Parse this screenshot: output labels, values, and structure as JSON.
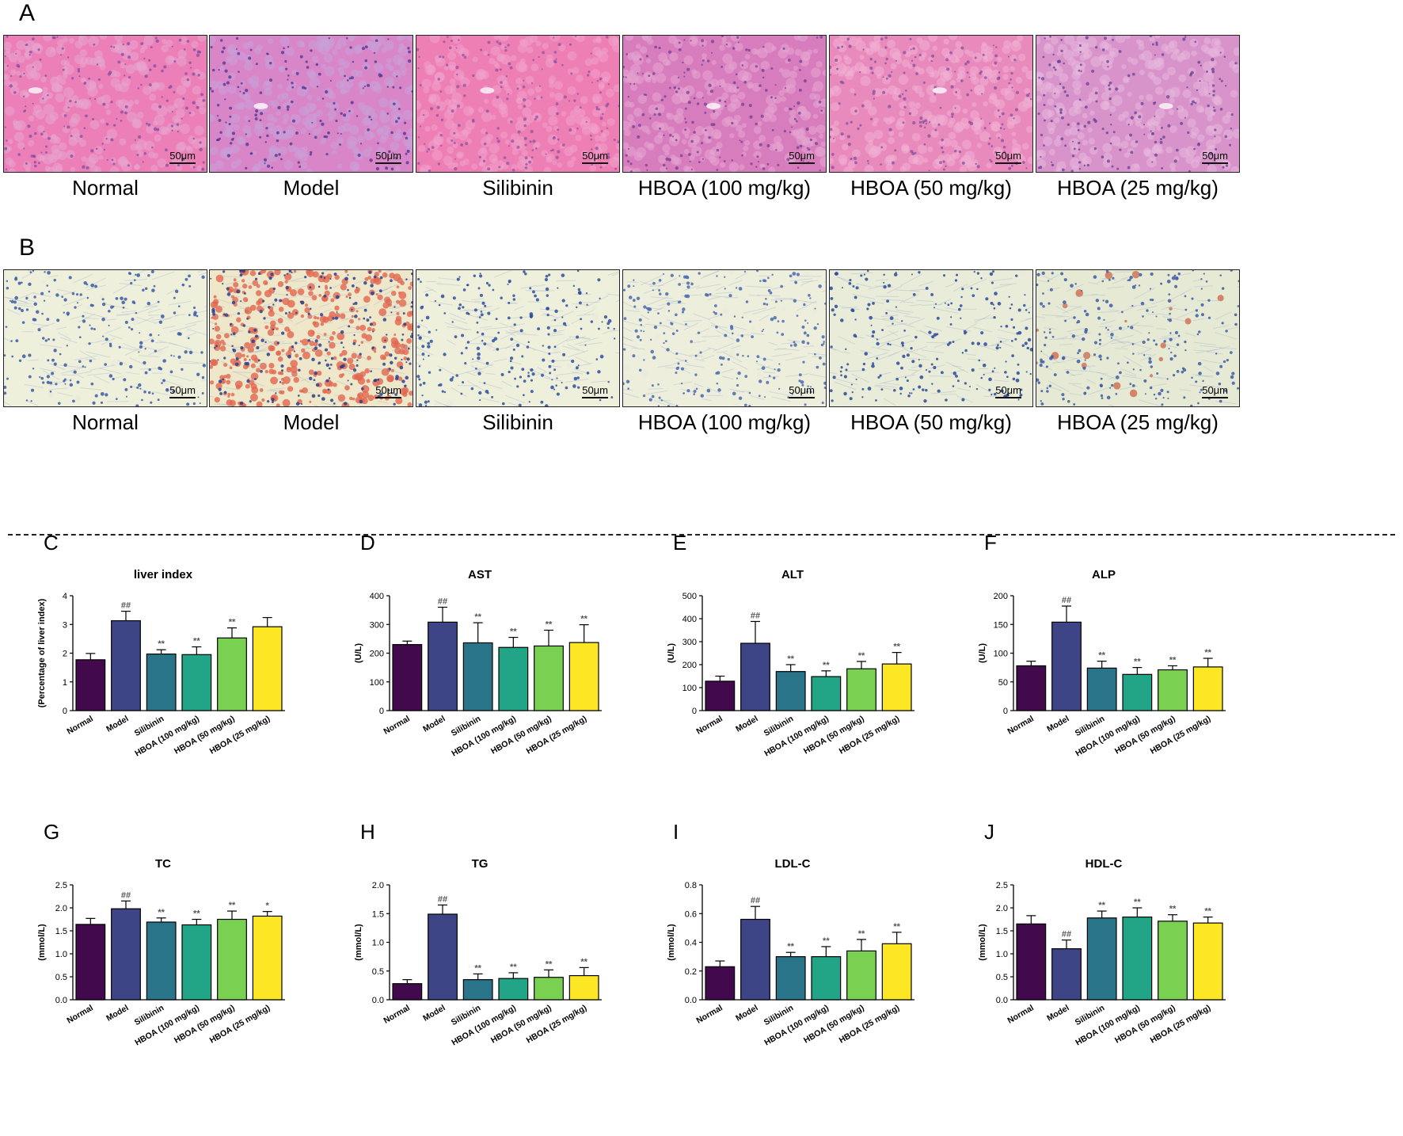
{
  "figure": {
    "panel_a_label": "A",
    "panel_b_label": "B",
    "scale_label": "50μm",
    "groups": [
      "Normal",
      "Model",
      "Silibinin",
      "HBOA (100 mg/kg)",
      "HBOA (50 mg/kg)",
      "HBOA (25 mg/kg)"
    ],
    "he_colors": [
      {
        "bg": "#ec7fb8",
        "cell": "#e8a6cf",
        "nuc": "#7a4a9c"
      },
      {
        "bg": "#d886c8",
        "cell": "#c9a1d8",
        "nuc": "#3e2f8c"
      },
      {
        "bg": "#ee7fb4",
        "cell": "#f0a3cc",
        "nuc": "#8a4e9e"
      },
      {
        "bg": "#d77cbd",
        "cell": "#e6a5d2",
        "nuc": "#6b3a8f"
      },
      {
        "bg": "#e98abd",
        "cell": "#f0b0d3",
        "nuc": "#7d4b9b"
      },
      {
        "bg": "#d893cb",
        "cell": "#e8b8dd",
        "nuc": "#5e3a92"
      }
    ],
    "oil_colors": [
      {
        "bg": "#eef0dc",
        "nuc": "#3b5ba6",
        "lipid": "#e8eadc"
      },
      {
        "bg": "#efe7c9",
        "nuc": "#2a3f8f",
        "lipid": "#e2674f"
      },
      {
        "bg": "#eef0dc",
        "nuc": "#2e4f9e",
        "lipid": "#e8eadc"
      },
      {
        "bg": "#edefdc",
        "nuc": "#4a6ab0",
        "lipid": "#e8eadc"
      },
      {
        "bg": "#e9ecd8",
        "nuc": "#2a4a9a",
        "lipid": "#e8eadc"
      },
      {
        "bg": "#e6ead5",
        "nuc": "#3d5ca3",
        "lipid": "#cf6b4c"
      }
    ]
  },
  "chart_colors": [
    "#420a4c",
    "#3e4586",
    "#2a7489",
    "#22a486",
    "#7ad151",
    "#fde725"
  ],
  "chart_data": [
    {
      "panel": "C",
      "type": "bar",
      "title": "liver index",
      "ylabel": "(Percentage of liver index)",
      "ylim": [
        0,
        4
      ],
      "yticks": [
        "0",
        "1",
        "2",
        "3",
        "4"
      ],
      "categories": [
        "Normal",
        "Model",
        "Silibinin",
        "HBOA (100 mg/kg)",
        "HBOA (50 mg/kg)",
        "HBOA (25 mg/kg)"
      ],
      "values": [
        1.77,
        3.13,
        1.97,
        1.95,
        2.53,
        2.92
      ],
      "errors": [
        0.22,
        0.33,
        0.15,
        0.27,
        0.35,
        0.32
      ],
      "marks": [
        "",
        "##",
        "**",
        "**",
        "**",
        ""
      ]
    },
    {
      "panel": "D",
      "type": "bar",
      "title": "AST",
      "ylabel": "(U/L)",
      "ylim": [
        0,
        400
      ],
      "yticks": [
        "0",
        "100",
        "200",
        "300",
        "400"
      ],
      "categories": [
        "Normal",
        "Model",
        "Silibinin",
        "HBOA (100 mg/kg)",
        "HBOA (50 mg/kg)",
        "HBOA (25 mg/kg)"
      ],
      "values": [
        230,
        308,
        236,
        220,
        225,
        237
      ],
      "errors": [
        12,
        52,
        70,
        35,
        55,
        62
      ],
      "marks": [
        "",
        "##",
        "**",
        "**",
        "**",
        "**"
      ]
    },
    {
      "panel": "E",
      "type": "bar",
      "title": "ALT",
      "ylabel": "(U/L)",
      "ylim": [
        0,
        500
      ],
      "yticks": [
        "0",
        "100",
        "200",
        "300",
        "400",
        "500"
      ],
      "categories": [
        "Normal",
        "Model",
        "Silibinin",
        "HBOA (100 mg/kg)",
        "HBOA (50 mg/kg)",
        "HBOA (25 mg/kg)"
      ],
      "values": [
        128,
        293,
        170,
        148,
        182,
        203
      ],
      "errors": [
        22,
        95,
        30,
        25,
        32,
        50
      ],
      "marks": [
        "",
        "##",
        "**",
        "**",
        "**",
        "**"
      ]
    },
    {
      "panel": "F",
      "type": "bar",
      "title": "ALP",
      "ylabel": "(U/L)",
      "ylim": [
        0,
        200
      ],
      "yticks": [
        "0",
        "50",
        "100",
        "150",
        "200"
      ],
      "categories": [
        "Normal",
        "Model",
        "Silibinin",
        "HBOA (100 mg/kg)",
        "HBOA (50 mg/kg)",
        "HBOA (25 mg/kg)"
      ],
      "values": [
        78,
        154,
        74,
        63,
        71,
        76
      ],
      "errors": [
        8,
        28,
        12,
        12,
        7,
        15
      ],
      "marks": [
        "",
        "##",
        "**",
        "**",
        "**",
        "**"
      ]
    },
    {
      "panel": "G",
      "type": "bar",
      "title": "TC",
      "ylabel": "(mmol/L)",
      "ylim": [
        0,
        2.5
      ],
      "yticks": [
        "0.0",
        "0.5",
        "1.0",
        "1.5",
        "2.0",
        "2.5"
      ],
      "categories": [
        "Normal",
        "Model",
        "Silibinin",
        "HBOA (100 mg/kg)",
        "HBOA (50 mg/kg)",
        "HBOA (25 mg/kg)"
      ],
      "values": [
        1.64,
        1.98,
        1.69,
        1.63,
        1.75,
        1.82
      ],
      "errors": [
        0.13,
        0.17,
        0.09,
        0.12,
        0.18,
        0.1
      ],
      "marks": [
        "",
        "##",
        "**",
        "**",
        "**",
        "*"
      ]
    },
    {
      "panel": "H",
      "type": "bar",
      "title": "TG",
      "ylabel": "(mmol/L)",
      "ylim": [
        0,
        2.0
      ],
      "yticks": [
        "0.0",
        "0.5",
        "1.0",
        "1.5",
        "2.0"
      ],
      "categories": [
        "Normal",
        "Model",
        "Silibinin",
        "HBOA (100 mg/kg)",
        "HBOA (50 mg/kg)",
        "HBOA (25 mg/kg)"
      ],
      "values": [
        0.28,
        1.49,
        0.35,
        0.37,
        0.39,
        0.42
      ],
      "errors": [
        0.07,
        0.16,
        0.1,
        0.1,
        0.13,
        0.14
      ],
      "marks": [
        "",
        "##",
        "**",
        "**",
        "**",
        "**"
      ]
    },
    {
      "panel": "I",
      "type": "bar",
      "title": "LDL-C",
      "ylabel": "(mmol/L)",
      "ylim": [
        0,
        0.8
      ],
      "yticks": [
        "0.0",
        "0.2",
        "0.4",
        "0.6",
        "0.8"
      ],
      "categories": [
        "Normal",
        "Model",
        "Silibinin",
        "HBOA (100 mg/kg)",
        "HBOA (50 mg/kg)",
        "HBOA (25 mg/kg)"
      ],
      "values": [
        0.23,
        0.56,
        0.3,
        0.3,
        0.34,
        0.39
      ],
      "errors": [
        0.04,
        0.09,
        0.03,
        0.07,
        0.08,
        0.08
      ],
      "marks": [
        "",
        "##",
        "**",
        "**",
        "**",
        "**"
      ]
    },
    {
      "panel": "J",
      "type": "bar",
      "title": "HDL-C",
      "ylabel": "(mmol/L)",
      "ylim": [
        0,
        2.5
      ],
      "yticks": [
        "0.0",
        "0.5",
        "1.0",
        "1.5",
        "2.0",
        "2.5"
      ],
      "categories": [
        "Normal",
        "Model",
        "Silibinin",
        "HBOA (100 mg/kg)",
        "HBOA (50 mg/kg)",
        "HBOA (25 mg/kg)"
      ],
      "values": [
        1.65,
        1.11,
        1.78,
        1.8,
        1.71,
        1.67
      ],
      "errors": [
        0.18,
        0.19,
        0.15,
        0.2,
        0.14,
        0.13
      ],
      "marks": [
        "",
        "##",
        "**",
        "**",
        "**",
        "**"
      ]
    }
  ]
}
